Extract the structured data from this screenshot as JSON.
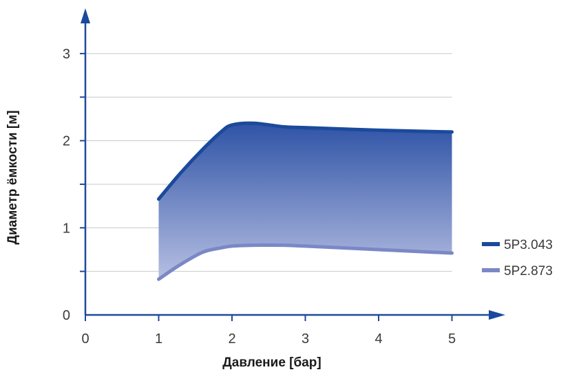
{
  "chart_data": {
    "type": "area",
    "xlabel": "Давление [бар]",
    "ylabel": "Диаметр ёмкости [м]",
    "xlim": [
      0,
      5
    ],
    "ylim": [
      0,
      3.3
    ],
    "x_ticks": [
      "0",
      "1",
      "2",
      "3",
      "4",
      "5"
    ],
    "y_ticks": [
      "0",
      "1",
      "2",
      "3"
    ],
    "grid": true,
    "legend_position": "right",
    "series": [
      {
        "name": "5P3.043",
        "color": "#1b4a9c",
        "x": [
          1.0,
          1.3,
          1.6,
          1.85,
          2.0,
          2.3,
          2.7,
          3.0,
          4.0,
          5.0
        ],
        "y": [
          1.33,
          1.63,
          1.9,
          2.1,
          2.18,
          2.2,
          2.16,
          2.15,
          2.12,
          2.1
        ]
      },
      {
        "name": "5P2.873",
        "color": "#7a88c6",
        "x": [
          1.0,
          1.3,
          1.6,
          1.85,
          2.0,
          2.3,
          2.7,
          3.0,
          4.0,
          5.0
        ],
        "y": [
          0.41,
          0.58,
          0.72,
          0.77,
          0.79,
          0.8,
          0.8,
          0.79,
          0.75,
          0.71
        ]
      }
    ],
    "fill_between": {
      "top_color": "#2f53a6",
      "bottom_color": "#b6bfe2"
    }
  }
}
